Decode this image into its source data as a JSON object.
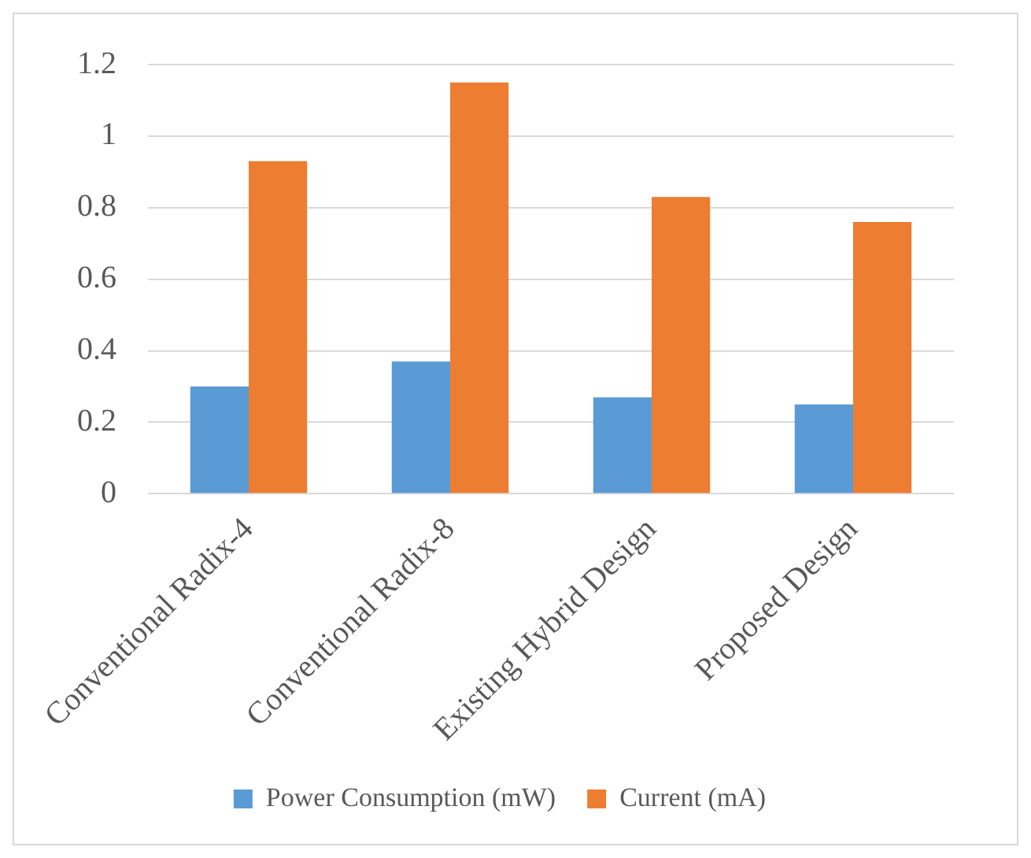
{
  "chart_data": {
    "type": "bar",
    "categories": [
      "Conventional Radix-4",
      "Conventional Radix-8",
      "Existing Hybrid Design",
      "Proposed Design"
    ],
    "series": [
      {
        "name": "Power Consumption (mW)",
        "color": "#5b9bd5",
        "values": [
          0.3,
          0.37,
          0.27,
          0.25
        ]
      },
      {
        "name": "Current (mA)",
        "color": "#ed7d31",
        "values": [
          0.93,
          1.15,
          0.83,
          0.76
        ]
      }
    ],
    "ylim": [
      0,
      1.2
    ],
    "yticks": [
      0,
      0.2,
      0.4,
      0.6,
      0.8,
      1,
      1.2
    ],
    "grid": "y",
    "legend": "bottom"
  }
}
